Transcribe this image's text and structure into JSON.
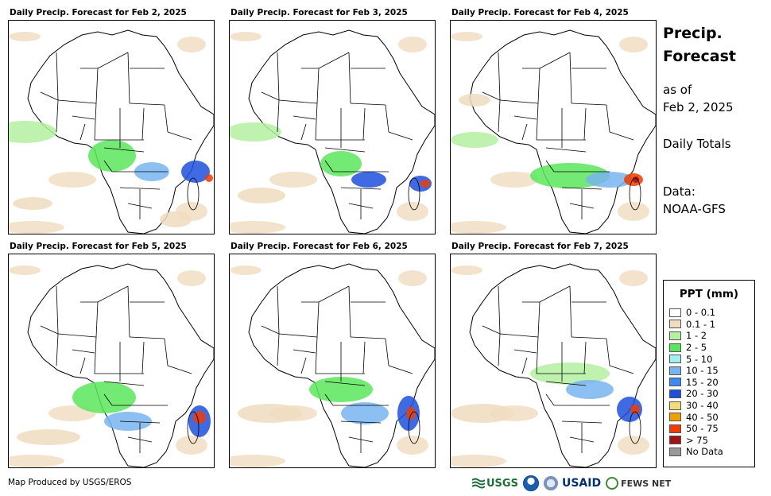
{
  "panels": [
    {
      "title": "Daily Precip. Forecast for Feb 2, 2025"
    },
    {
      "title": "Daily Precip. Forecast for Feb 3, 2025"
    },
    {
      "title": "Daily Precip. Forecast for Feb 4, 2025"
    },
    {
      "title": "Daily Precip. Forecast for Feb 5, 2025"
    },
    {
      "title": "Daily Precip. Forecast for Feb 6, 2025"
    },
    {
      "title": "Daily Precip. Forecast for Feb 7, 2025"
    }
  ],
  "side": {
    "title_line1": "Precip.",
    "title_line2": "Forecast",
    "asof_line1": "as of",
    "asof_line2": "Feb 2, 2025",
    "totals": "Daily Totals",
    "data_line1": "Data:",
    "data_line2": "NOAA-GFS"
  },
  "legend": {
    "title": "PPT (mm)",
    "items": [
      {
        "label": "0 - 0.1",
        "color": "#ffffff"
      },
      {
        "label": "0.1 - 1",
        "color": "#f0dcc0"
      },
      {
        "label": "1 - 2",
        "color": "#b4f0a0"
      },
      {
        "label": "2 - 5",
        "color": "#5ae65a"
      },
      {
        "label": "5 - 10",
        "color": "#a0f0f0"
      },
      {
        "label": "10 - 15",
        "color": "#78b4f0"
      },
      {
        "label": "15 - 20",
        "color": "#3c8cf0"
      },
      {
        "label": "20 - 30",
        "color": "#1e50dc"
      },
      {
        "label": "30 - 40",
        "color": "#f0dc78"
      },
      {
        "label": "40 - 50",
        "color": "#f0a000"
      },
      {
        "label": "50 - 75",
        "color": "#f03c00"
      },
      {
        "label": "> 75",
        "color": "#a01414"
      },
      {
        "label": "No Data",
        "color": "#999999"
      }
    ]
  },
  "footer": {
    "credit": "Map Produced by USGS/EROS"
  },
  "logos": {
    "usgs": "USGS",
    "usaid": "USAID",
    "fews": "FEWS NET"
  },
  "map_style": {
    "land": "#ffffff",
    "border": "#000000",
    "dry": "#f0dcc0",
    "light": "#b4f0a0",
    "moderate": "#5ae65a",
    "heavy": "#78b4f0",
    "very_heavy": "#1e50dc",
    "extreme": "#f03c00",
    "max": "#a01414"
  }
}
